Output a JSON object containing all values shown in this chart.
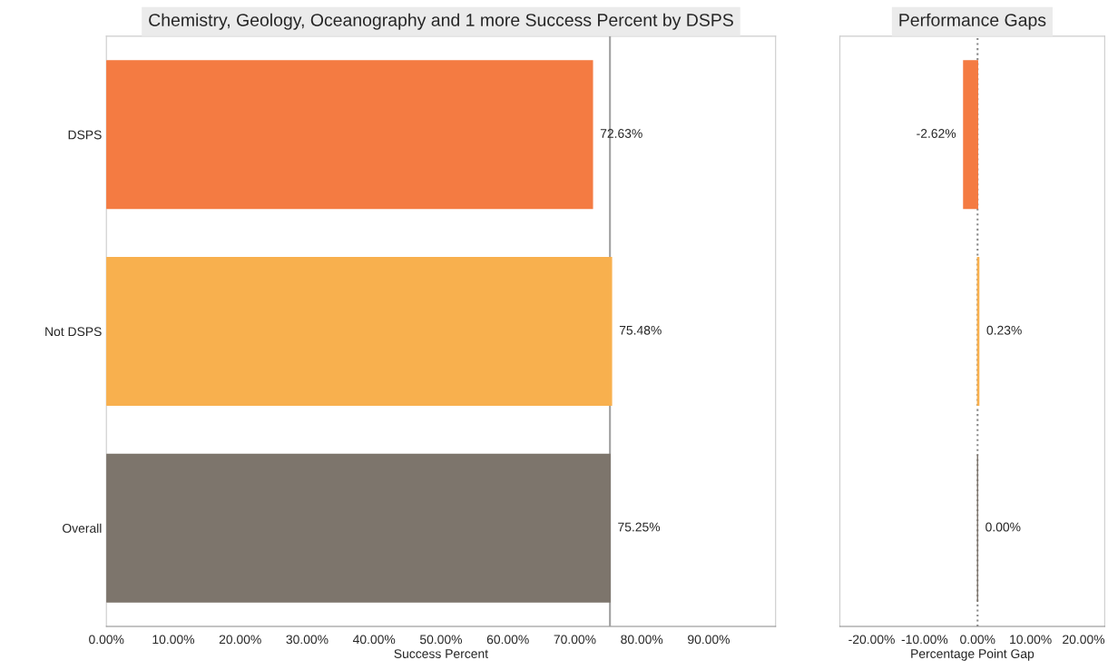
{
  "chart_data": [
    {
      "type": "bar",
      "orientation": "horizontal",
      "title": "Chemistry, Geology, Oceanography and 1 more Success Percent by DSPS",
      "xlabel": "Success Percent",
      "categories": [
        "DSPS",
        "Not DSPS",
        "Overall"
      ],
      "values": [
        72.63,
        75.48,
        75.25
      ],
      "colors": [
        "#f47b42",
        "#f8b04e",
        "#7d756c"
      ],
      "value_labels": [
        "72.63%",
        "75.48%",
        "75.25%"
      ],
      "xlim": [
        0,
        100
      ],
      "xticks": [
        {
          "value": 0,
          "label": "0.00%"
        },
        {
          "value": 10,
          "label": "10.00%"
        },
        {
          "value": 20,
          "label": "20.00%"
        },
        {
          "value": 30,
          "label": "30.00%"
        },
        {
          "value": 40,
          "label": "40.00%"
        },
        {
          "value": 50,
          "label": "50.00%"
        },
        {
          "value": 60,
          "label": "60.00%"
        },
        {
          "value": 70,
          "label": "70.00%"
        },
        {
          "value": 80,
          "label": "80.00%"
        },
        {
          "value": 90,
          "label": "90.00%"
        }
      ],
      "ref_lines": [
        {
          "axis": "x",
          "value": 75.25,
          "color": "#a0a0a0",
          "line_style": "solid"
        }
      ],
      "grid": false,
      "legend": false
    },
    {
      "type": "bar",
      "orientation": "horizontal",
      "title": "Performance Gaps",
      "xlabel": "Percentage Point Gap",
      "categories": [
        null,
        null,
        null
      ],
      "values": [
        -2.62,
        0.23,
        0.0
      ],
      "colors": [
        "#f47b42",
        "#f8b04e",
        "#7d756c"
      ],
      "value_labels": [
        "-2.62%",
        "0.23%",
        "0.00%"
      ],
      "xlim": [
        -26,
        24
      ],
      "xticks": [
        {
          "value": -20,
          "label": "-20.00%"
        },
        {
          "value": -10,
          "label": "-10.00%"
        },
        {
          "value": 0,
          "label": "0.00%"
        },
        {
          "value": 10,
          "label": "10.00%"
        },
        {
          "value": 20,
          "label": "20.00%"
        }
      ],
      "ref_lines": [
        {
          "axis": "x",
          "value": 0,
          "color": "#888888",
          "line_style": "dotted"
        }
      ],
      "tick_labels": "x",
      "grid": false,
      "legend": false
    }
  ]
}
